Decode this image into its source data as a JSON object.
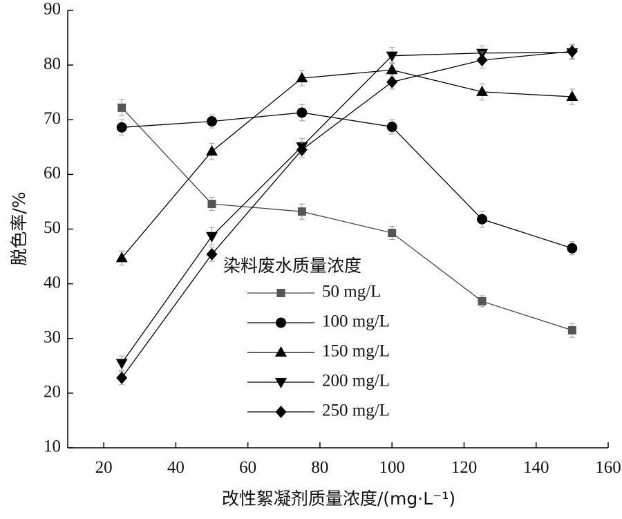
{
  "chart_data": {
    "type": "line",
    "title": "",
    "xlabel": "改性絮凝剂质量浓度/(mg·L⁻¹)",
    "ylabel": "脱色率/%",
    "xlim": [
      10,
      160
    ],
    "ylim": [
      10,
      90
    ],
    "x_ticks": [
      20,
      40,
      60,
      80,
      100,
      120,
      140,
      160
    ],
    "y_ticks": [
      10,
      20,
      30,
      40,
      50,
      60,
      70,
      80,
      90
    ],
    "grid": false,
    "legend": {
      "title": "染料废水质量浓度",
      "placement": "center"
    },
    "x": [
      25,
      50,
      75,
      100,
      125,
      150
    ],
    "series": [
      {
        "name": "50 mg/L",
        "marker": "square",
        "color": "#555555",
        "values": [
          72.2,
          54.6,
          53.2,
          49.3,
          36.8,
          31.5
        ],
        "errors": [
          1.5,
          1.2,
          1.4,
          1.2,
          1.0,
          1.3
        ]
      },
      {
        "name": "100 mg/L",
        "marker": "circle",
        "color": "#000000",
        "values": [
          68.6,
          69.7,
          71.3,
          68.7,
          51.8,
          46.5
        ],
        "errors": [
          1.4,
          1.2,
          1.5,
          1.3,
          1.5,
          1.2
        ]
      },
      {
        "name": "150 mg/L",
        "marker": "triangle-up",
        "color": "#000000",
        "values": [
          44.7,
          64.2,
          77.6,
          79.1,
          75.1,
          74.2
        ],
        "errors": [
          1.3,
          1.5,
          1.4,
          1.3,
          1.5,
          1.4
        ]
      },
      {
        "name": "200 mg/L",
        "marker": "triangle-down",
        "color": "#000000",
        "values": [
          25.5,
          48.7,
          65.1,
          81.7,
          82.2,
          82.3
        ],
        "errors": [
          1.3,
          1.6,
          1.5,
          1.5,
          1.3,
          1.3
        ]
      },
      {
        "name": "250 mg/L",
        "marker": "diamond",
        "color": "#000000",
        "values": [
          22.8,
          45.4,
          64.5,
          76.9,
          80.9,
          82.5
        ],
        "errors": [
          1.2,
          1.3,
          1.4,
          1.3,
          1.5,
          1.3
        ]
      }
    ]
  }
}
